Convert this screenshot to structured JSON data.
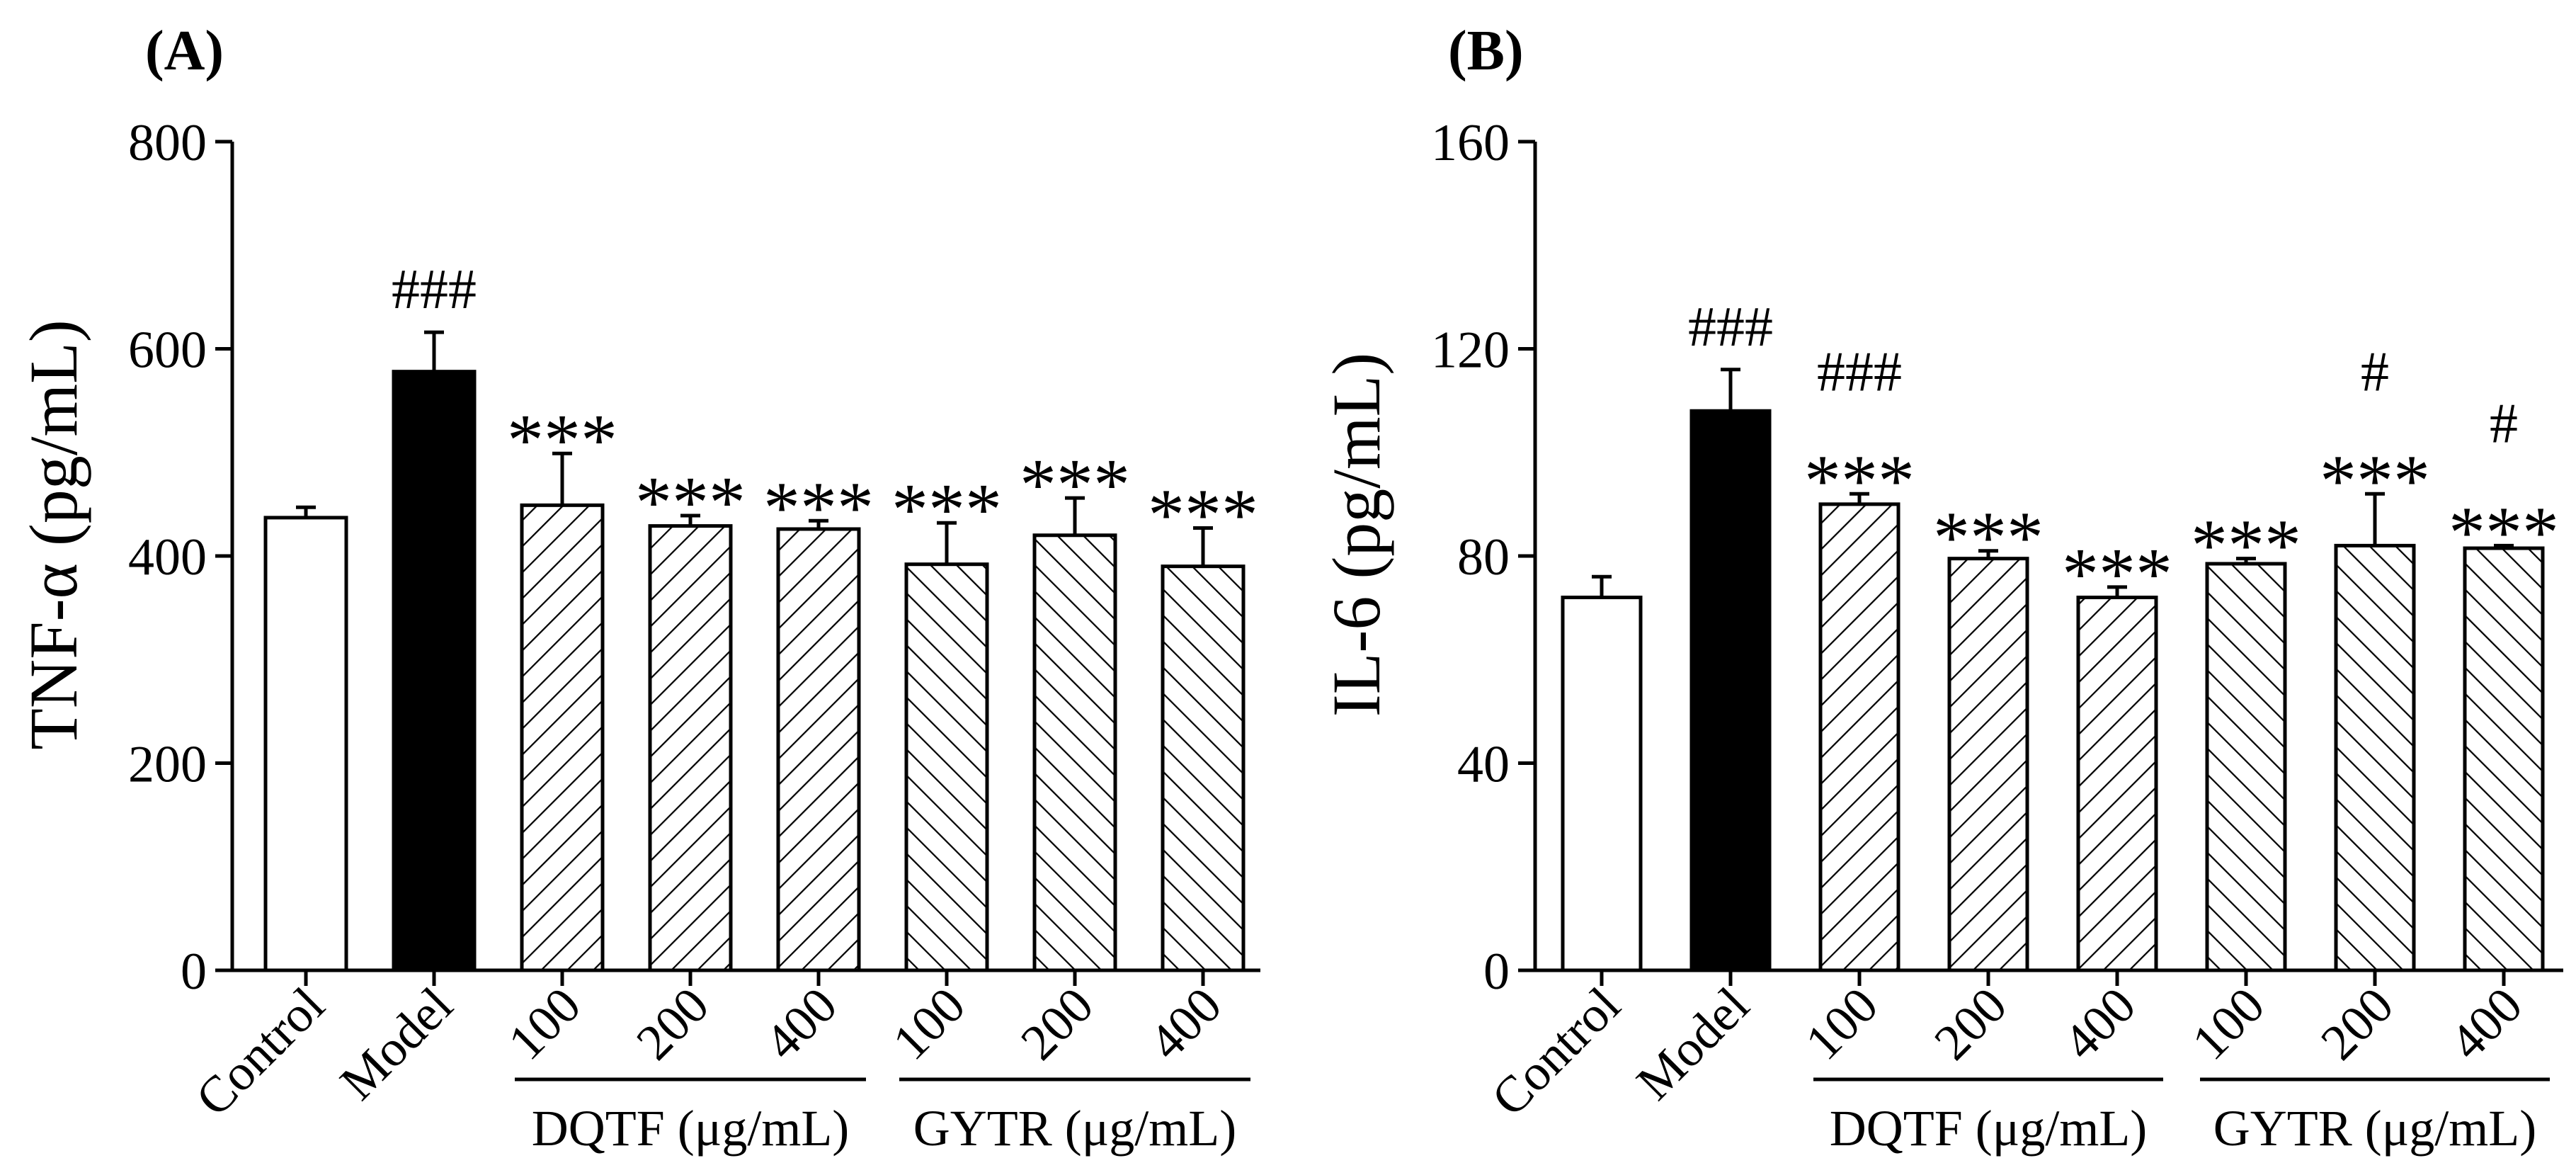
{
  "chart_data": [
    {
      "type": "bar",
      "panel_label": "(A)",
      "ylabel": "TNF-α (pg/mL)",
      "ylim": [
        0,
        800
      ],
      "yticks": [
        "0",
        "200",
        "400",
        "600",
        "800"
      ],
      "categories": [
        "Control",
        "Model",
        "100",
        "200",
        "400",
        "100",
        "200",
        "400"
      ],
      "values": [
        437,
        578,
        449,
        429,
        426,
        392,
        420,
        390
      ],
      "errors": [
        10,
        38,
        50,
        10,
        8,
        40,
        36,
        37
      ],
      "patterns": [
        "white",
        "black",
        "hatch-right",
        "hatch-right",
        "hatch-right",
        "hatch-left",
        "hatch-left",
        "hatch-left"
      ],
      "annotations": [
        {
          "bar": 1,
          "lines": [
            "###"
          ]
        },
        {
          "bar": 2,
          "lines": [
            "***"
          ]
        },
        {
          "bar": 3,
          "lines": [
            "***"
          ]
        },
        {
          "bar": 4,
          "lines": [
            "***"
          ]
        },
        {
          "bar": 5,
          "lines": [
            "***"
          ]
        },
        {
          "bar": 6,
          "lines": [
            "***"
          ]
        },
        {
          "bar": 7,
          "lines": [
            "***"
          ]
        }
      ],
      "groups": [
        {
          "label": "DQTF (μg/mL)",
          "bars": [
            2,
            3,
            4
          ]
        },
        {
          "label": "GYTR (μg/mL)",
          "bars": [
            5,
            6,
            7
          ]
        }
      ]
    },
    {
      "type": "bar",
      "panel_label": "(B)",
      "ylabel": "IL-6 (pg/mL)",
      "ylim": [
        0,
        160
      ],
      "yticks": [
        "0",
        "40",
        "80",
        "120",
        "160"
      ],
      "categories": [
        "Control",
        "Model",
        "100",
        "200",
        "400",
        "100",
        "200",
        "400"
      ],
      "values": [
        72,
        108,
        90,
        79.5,
        72,
        78.5,
        82,
        81.5
      ],
      "errors": [
        4,
        8,
        2,
        1.5,
        2,
        1,
        10,
        0.5
      ],
      "patterns": [
        "white",
        "black",
        "hatch-right",
        "hatch-right",
        "hatch-right",
        "hatch-left",
        "hatch-left",
        "hatch-left"
      ],
      "annotations": [
        {
          "bar": 1,
          "lines": [
            "###"
          ]
        },
        {
          "bar": 2,
          "lines": [
            "###",
            "***"
          ]
        },
        {
          "bar": 3,
          "lines": [
            "***"
          ]
        },
        {
          "bar": 4,
          "lines": [
            "***"
          ]
        },
        {
          "bar": 5,
          "lines": [
            "***"
          ]
        },
        {
          "bar": 6,
          "lines": [
            "#",
            "***"
          ]
        },
        {
          "bar": 7,
          "lines": [
            "#",
            "***"
          ]
        }
      ],
      "groups": [
        {
          "label": "DQTF (μg/mL)",
          "bars": [
            2,
            3,
            4
          ]
        },
        {
          "label": "GYTR (μg/mL)",
          "bars": [
            5,
            6,
            7
          ]
        }
      ]
    }
  ]
}
